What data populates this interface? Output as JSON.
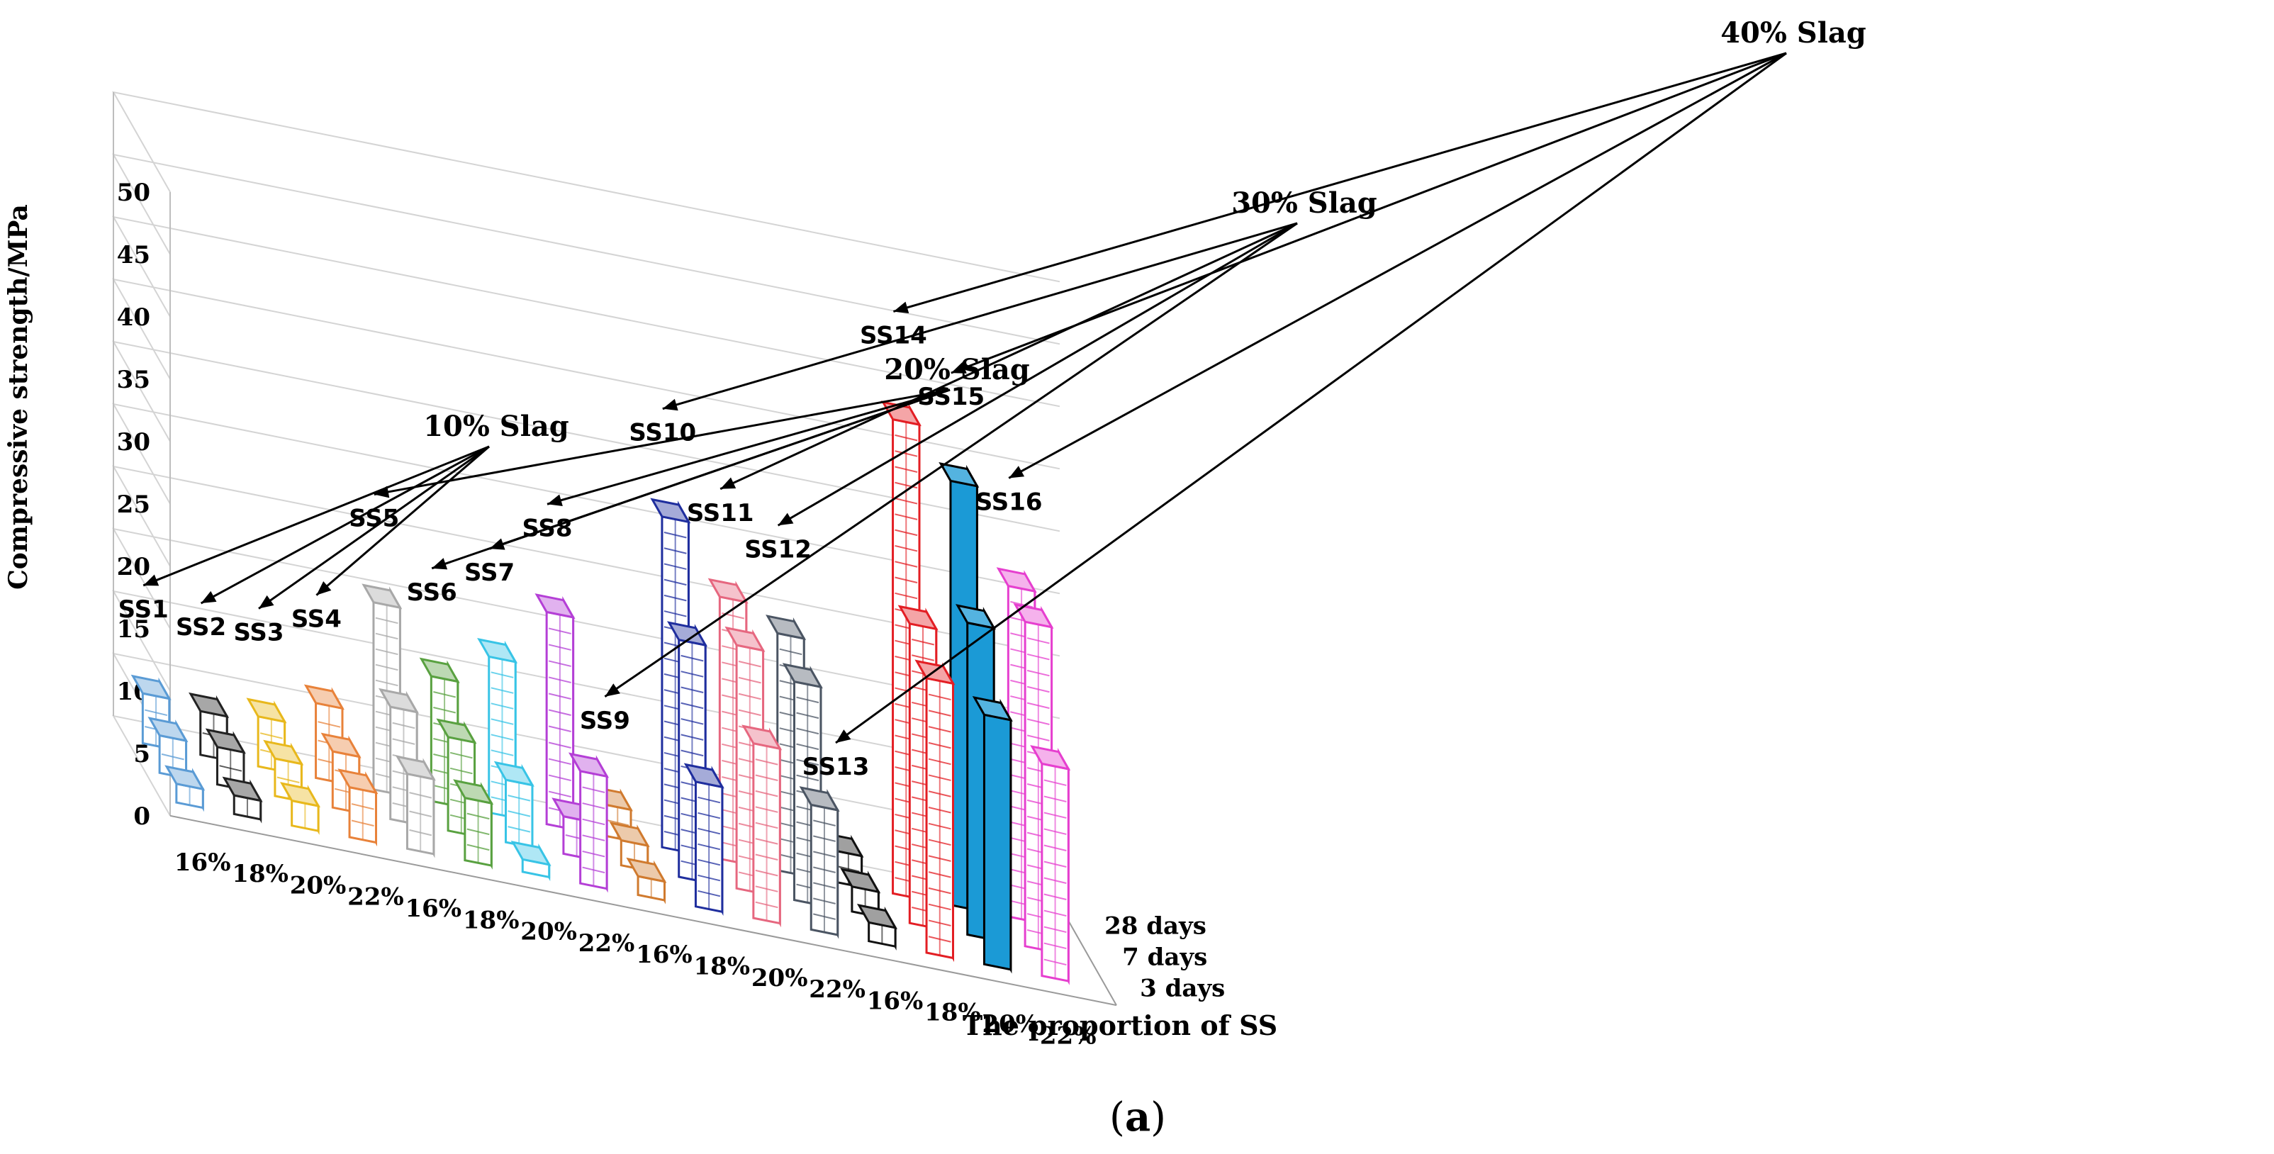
{
  "chart_data": {
    "type": "bar",
    "subtype": "3d-grouped-bar",
    "title": "",
    "xlabel": "The proportion of SS",
    "ylabel": "Compressive strength/MPa",
    "ylim": [
      0,
      50
    ],
    "yticks": [
      0,
      5,
      10,
      15,
      20,
      25,
      30,
      35,
      40,
      45,
      50
    ],
    "grid": true,
    "caption_prefix": "(",
    "caption_letter": "a",
    "caption_suffix": ")",
    "depth_labels": [
      "28 days",
      "7 days",
      "3 days"
    ],
    "categories": [
      "16%",
      "18%",
      "20%",
      "22%",
      "16%",
      "18%",
      "20%",
      "22%",
      "16%",
      "18%",
      "20%",
      "22%",
      "16%",
      "18%",
      "20%",
      "22%"
    ],
    "mix_labels": [
      "SS1",
      "SS2",
      "SS3",
      "SS4",
      "SS5",
      "SS6",
      "SS7",
      "SS8",
      "SS9",
      "SS10",
      "SS11",
      "SS12",
      "SS13",
      "SS14",
      "SS15",
      "SS16"
    ],
    "group_labels": [
      "10% Slag",
      "20% Slag",
      "30% Slag",
      "40% Slag"
    ],
    "series": [
      {
        "name": "3 days",
        "values": [
          1.5,
          1.5,
          2.0,
          4.0,
          6.0,
          5.0,
          1.0,
          9.0,
          1.5,
          10.0,
          14.0,
          10.0,
          1.5,
          22.0,
          20.0,
          17.0
        ]
      },
      {
        "name": "7 days",
        "values": [
          3.0,
          3.0,
          3.0,
          4.5,
          9.0,
          7.5,
          5.0,
          3.0,
          2.0,
          19.0,
          19.5,
          17.5,
          2.0,
          24.0,
          25.0,
          26.0
        ]
      },
      {
        "name": "28 days",
        "values": [
          4.0,
          3.5,
          4.0,
          6.0,
          15.0,
          10.0,
          12.5,
          17.0,
          2.5,
          26.5,
          21.0,
          19.0,
          2.5,
          38.0,
          34.0,
          26.5
        ]
      }
    ],
    "colors": [
      "#5a9bd5",
      "#222222",
      "#e8b81c",
      "#e8823a",
      "#a8a8a8",
      "#59a140",
      "#38c4e6",
      "#b43fd6",
      "#d07a2e",
      "#1f2e9e",
      "#e6677f",
      "#4b5563",
      "#111111",
      "#e31e24",
      "#1b9ad6",
      "#e63fcf"
    ]
  }
}
